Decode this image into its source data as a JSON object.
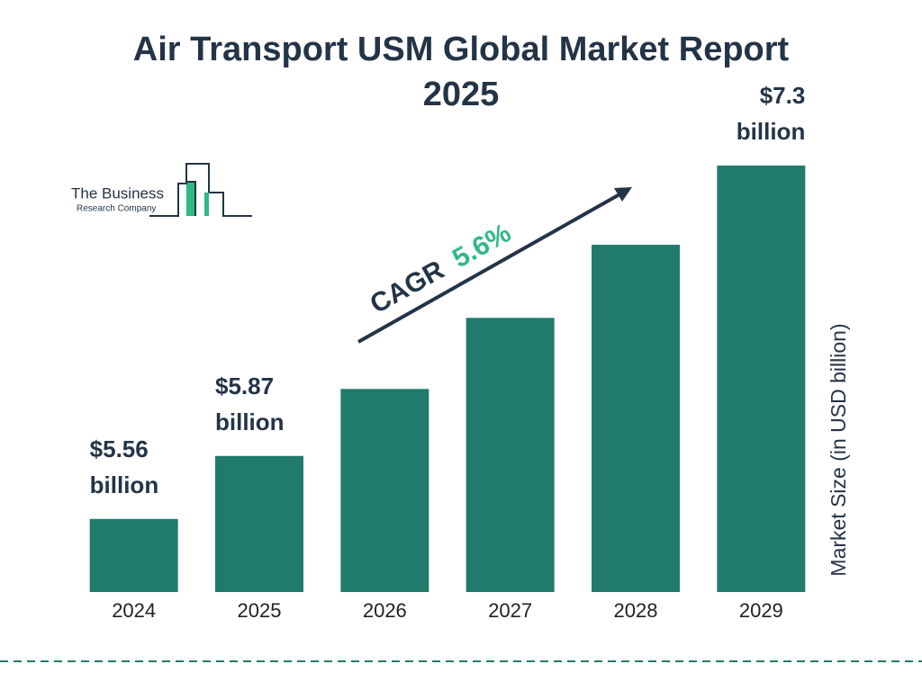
{
  "chart_data": {
    "type": "bar",
    "title": "Air Transport USM Global Market Report 2025",
    "categories": [
      "2024",
      "2025",
      "2026",
      "2027",
      "2028",
      "2029"
    ],
    "values": [
      5.56,
      5.87,
      6.2,
      6.55,
      6.91,
      7.3
    ],
    "value_labels": [
      "$5.56 billion",
      "$5.87 billion",
      null,
      null,
      null,
      "$7.3 billion"
    ],
    "color": "#217b6d",
    "ylim": [
      5.2,
      7.3
    ],
    "y_label": "Market Size (in USD billion)",
    "cagr_label": "CAGR",
    "cagr_value": "5.6%",
    "logo": {
      "line1": "The Business",
      "line2": "Research Company"
    }
  }
}
